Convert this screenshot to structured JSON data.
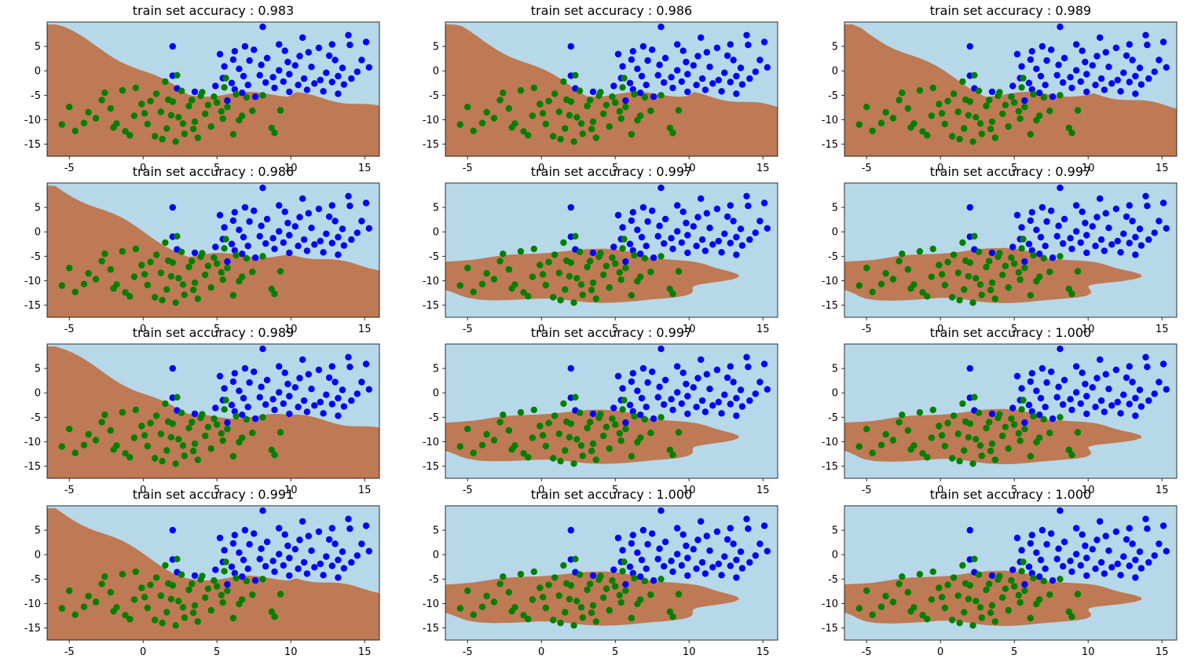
{
  "figure": {
    "rows": 4,
    "cols": 3,
    "colors": {
      "region_a": "#b7d8e8",
      "region_b": "#bd7a55",
      "class_blue": "#0000ff",
      "class_green": "#007f00"
    }
  },
  "chart_data": [
    {
      "type": "scatter",
      "title": "train set accuracy : 0.983",
      "xlim": [
        -6.5,
        16
      ],
      "ylim": [
        -17.5,
        10
      ],
      "xticks": [
        "-5",
        "0",
        "5",
        "10",
        "15"
      ],
      "yticks": [
        "5",
        "0",
        "-5",
        "-10",
        "-15"
      ],
      "background_region": "b",
      "inner_region": "a"
    },
    {
      "type": "scatter",
      "title": "train set accuracy : 0.986",
      "xlim": [
        -6.5,
        16
      ],
      "ylim": [
        -17.5,
        10
      ],
      "xticks": [
        "-5",
        "0",
        "5",
        "10",
        "15"
      ],
      "yticks": [
        "5",
        "0",
        "-5",
        "-10",
        "-15"
      ],
      "background_region": "b",
      "inner_region": "a"
    },
    {
      "type": "scatter",
      "title": "train set accuracy : 0.989",
      "xlim": [
        -6.5,
        16
      ],
      "ylim": [
        -17.5,
        10
      ],
      "xticks": [
        "-5",
        "0",
        "5",
        "10",
        "15"
      ],
      "yticks": [
        "5",
        "0",
        "-5",
        "-10",
        "-15"
      ],
      "background_region": "b",
      "inner_region": "a"
    },
    {
      "type": "scatter",
      "title": "train set accuracy : 0.986",
      "xlim": [
        -6.5,
        16
      ],
      "ylim": [
        -17.5,
        10
      ],
      "xticks": [
        "-5",
        "0",
        "5",
        "10",
        "15"
      ],
      "yticks": [
        "5",
        "0",
        "-5",
        "-10",
        "-15"
      ],
      "background_region": "b",
      "inner_region": "a"
    },
    {
      "type": "scatter",
      "title": "train set accuracy : 0.997",
      "xlim": [
        -6.5,
        16
      ],
      "ylim": [
        -17.5,
        10
      ],
      "xticks": [
        "-5",
        "0",
        "5",
        "10",
        "15"
      ],
      "yticks": [
        "5",
        "0",
        "-5",
        "-10",
        "-15"
      ],
      "background_region": "a",
      "inner_region": "b"
    },
    {
      "type": "scatter",
      "title": "train set accuracy : 0.997",
      "xlim": [
        -6.5,
        16
      ],
      "ylim": [
        -17.5,
        10
      ],
      "xticks": [
        "-5",
        "0",
        "5",
        "10",
        "15"
      ],
      "yticks": [
        "5",
        "0",
        "-5",
        "-10",
        "-15"
      ],
      "background_region": "a",
      "inner_region": "b"
    },
    {
      "type": "scatter",
      "title": "train set accuracy : 0.989",
      "xlim": [
        -6.5,
        16
      ],
      "ylim": [
        -17.5,
        10
      ],
      "xticks": [
        "-5",
        "0",
        "5",
        "10",
        "15"
      ],
      "yticks": [
        "5",
        "0",
        "-5",
        "-10",
        "-15"
      ],
      "background_region": "b",
      "inner_region": "a"
    },
    {
      "type": "scatter",
      "title": "train set accuracy : 0.997",
      "xlim": [
        -6.5,
        16
      ],
      "ylim": [
        -17.5,
        10
      ],
      "xticks": [
        "-5",
        "0",
        "5",
        "10",
        "15"
      ],
      "yticks": [
        "5",
        "0",
        "-5",
        "-10",
        "-15"
      ],
      "background_region": "a",
      "inner_region": "b"
    },
    {
      "type": "scatter",
      "title": "train set accuracy : 1.000",
      "xlim": [
        -6.5,
        16
      ],
      "ylim": [
        -17.5,
        10
      ],
      "xticks": [
        "-5",
        "0",
        "5",
        "10",
        "15"
      ],
      "yticks": [
        "5",
        "0",
        "-5",
        "-10",
        "-15"
      ],
      "background_region": "a",
      "inner_region": "b"
    },
    {
      "type": "scatter",
      "title": "train set accuracy : 0.991",
      "xlim": [
        -6.5,
        16
      ],
      "ylim": [
        -17.5,
        10
      ],
      "xticks": [
        "-5",
        "0",
        "5",
        "10",
        "15"
      ],
      "yticks": [
        "5",
        "0",
        "-5",
        "-10",
        "-15"
      ],
      "background_region": "b",
      "inner_region": "a"
    },
    {
      "type": "scatter",
      "title": "train set accuracy : 1.000",
      "xlim": [
        -6.5,
        16
      ],
      "ylim": [
        -17.5,
        10
      ],
      "xticks": [
        "-5",
        "0",
        "5",
        "10",
        "15"
      ],
      "yticks": [
        "5",
        "0",
        "-5",
        "-10",
        "-15"
      ],
      "background_region": "a",
      "inner_region": "b"
    },
    {
      "type": "scatter",
      "title": "train set accuracy : 1.000",
      "xlim": [
        -6.5,
        16
      ],
      "ylim": [
        -17.5,
        10
      ],
      "xticks": [
        "-5",
        "0",
        "5",
        "10",
        "15"
      ],
      "yticks": [
        "5",
        "0",
        "-5",
        "-10",
        "-15"
      ],
      "background_region": "a",
      "inner_region": "b"
    }
  ],
  "points": {
    "blue": [
      [
        8.1,
        9
      ],
      [
        13.9,
        7.3
      ],
      [
        15.1,
        5.9
      ],
      [
        14,
        5.3
      ],
      [
        12.8,
        5.4
      ],
      [
        2,
        5
      ],
      [
        6.9,
        5
      ],
      [
        10.8,
        6.8
      ],
      [
        9.2,
        5.4
      ],
      [
        11.9,
        4.7
      ],
      [
        5.2,
        3.4
      ],
      [
        6.2,
        4
      ],
      [
        7.5,
        4.3
      ],
      [
        9.6,
        4.1
      ],
      [
        11.2,
        3.8
      ],
      [
        12.6,
        3.1
      ],
      [
        14.8,
        2.2
      ],
      [
        13,
        2.2
      ],
      [
        15.3,
        0.7
      ],
      [
        9.8,
        1.8
      ],
      [
        10.6,
        3
      ],
      [
        8.4,
        2.6
      ],
      [
        6.1,
        2.3
      ],
      [
        7.2,
        2.1
      ],
      [
        5.5,
        0.9
      ],
      [
        6.5,
        0.4
      ],
      [
        8,
        1.2
      ],
      [
        9.2,
        0.1
      ],
      [
        10.3,
        1.1
      ],
      [
        11.4,
        0.8
      ],
      [
        12.4,
        -0.4
      ],
      [
        13.5,
        0.6
      ],
      [
        14.5,
        -0.2
      ],
      [
        5.4,
        -1.5
      ],
      [
        6.8,
        -1.1
      ],
      [
        7.9,
        -0.9
      ],
      [
        8.8,
        -1.3
      ],
      [
        9.9,
        -0.7
      ],
      [
        10.9,
        -1.6
      ],
      [
        12,
        -1.9
      ],
      [
        13.2,
        -1.1
      ],
      [
        14.1,
        -1.6
      ],
      [
        6,
        -2.5
      ],
      [
        7.1,
        -2.9
      ],
      [
        8.3,
        -2.4
      ],
      [
        9.5,
        -2.2
      ],
      [
        10.5,
        -2.9
      ],
      [
        11.6,
        -2.6
      ],
      [
        12.8,
        -2.3
      ],
      [
        13.6,
        -2.8
      ],
      [
        8.9,
        -3.5
      ],
      [
        11.1,
        -3.9
      ],
      [
        12.2,
        -4.2
      ],
      [
        13.2,
        -4.7
      ],
      [
        6.7,
        -4.5
      ],
      [
        2.3,
        -3.6
      ],
      [
        4.9,
        -3.1
      ],
      [
        2,
        -1
      ],
      [
        5.7,
        -6.1
      ],
      [
        3.5,
        -4.3
      ],
      [
        7.6,
        -5.3
      ],
      [
        6.2,
        -3.8
      ],
      [
        9.9,
        -4.3
      ]
    ],
    "green": [
      [
        -5,
        -7.4
      ],
      [
        -5.5,
        -11
      ],
      [
        -4.6,
        -12.3
      ],
      [
        -3.2,
        -9.7
      ],
      [
        -2.8,
        -6
      ],
      [
        -2.2,
        -7.7
      ],
      [
        -1.8,
        -10.8
      ],
      [
        -1.2,
        -12.4
      ],
      [
        -0.6,
        -9.2
      ],
      [
        -0.1,
        -6.8
      ],
      [
        0.3,
        -10.9
      ],
      [
        0.8,
        -13.4
      ],
      [
        1.2,
        -8.4
      ],
      [
        1.6,
        -11.8
      ],
      [
        2,
        -6.3
      ],
      [
        2.4,
        -9.5
      ],
      [
        2.8,
        -12.9
      ],
      [
        3.1,
        -7.2
      ],
      [
        3.5,
        -10.4
      ],
      [
        3.9,
        -5.1
      ],
      [
        4.2,
        -8.8
      ],
      [
        4.6,
        -11.4
      ],
      [
        5,
        -6.5
      ],
      [
        5.4,
        -9.8
      ],
      [
        5.7,
        -7.4
      ],
      [
        6.1,
        -13
      ],
      [
        6.5,
        -10.1
      ],
      [
        7,
        -5.4
      ],
      [
        7.4,
        -8.2
      ],
      [
        8.1,
        -5
      ],
      [
        8.7,
        -11.7
      ],
      [
        8.9,
        -12.7
      ],
      [
        9.3,
        -8.1
      ],
      [
        -2.6,
        -4.5
      ],
      [
        -1.4,
        -4
      ],
      [
        -0.5,
        -3.5
      ],
      [
        0.9,
        -4.7
      ],
      [
        1.7,
        -5.9
      ],
      [
        2.6,
        -4.1
      ],
      [
        3.3,
        -6
      ],
      [
        4,
        -4.4
      ],
      [
        4.8,
        -5.3
      ],
      [
        5.5,
        -3.4
      ],
      [
        6.3,
        -4.8
      ],
      [
        0.5,
        -6.2
      ],
      [
        1.3,
        -14
      ],
      [
        2.2,
        -14.5
      ],
      [
        3.7,
        -13.7
      ],
      [
        -0.9,
        -13.2
      ],
      [
        -2,
        -11.6
      ],
      [
        -3.7,
        -8.5
      ],
      [
        -4,
        -10.7
      ],
      [
        0.1,
        -8.7
      ],
      [
        1.9,
        -9.1
      ],
      [
        2.7,
        -10.8
      ],
      [
        4.4,
        -7
      ],
      [
        3.4,
        -11.9
      ],
      [
        5.3,
        -8.3
      ],
      [
        6.7,
        -9.2
      ],
      [
        1.5,
        -2.2
      ],
      [
        2.3,
        -0.9
      ],
      [
        5.6,
        -1.5
      ]
    ]
  }
}
